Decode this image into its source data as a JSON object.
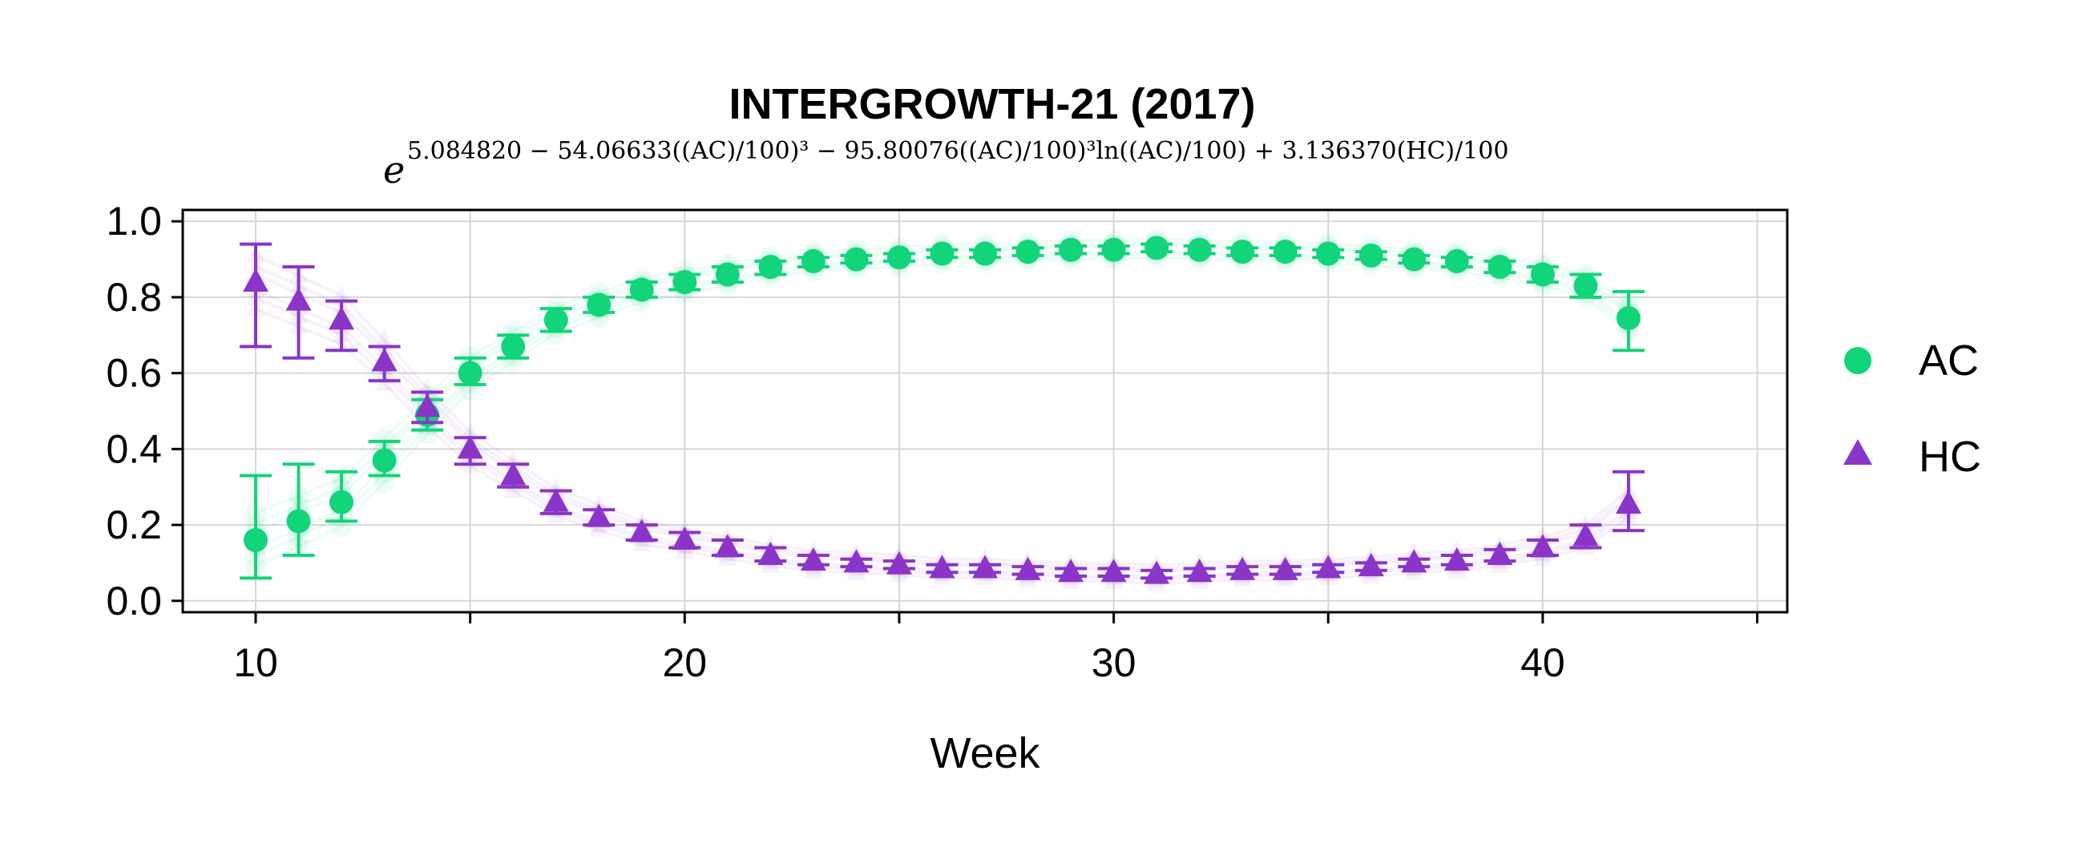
{
  "chart_data": {
    "type": "scatter",
    "title": "INTERGROWTH-21 (2017)",
    "subtitle_base": "e",
    "subtitle_exponent": "5.084820 − 54.06633((AC)/100)³ − 95.80076((AC)/100)³ln((AC)/100) + 3.136370(HC)/100",
    "xlabel": "Week",
    "ylabel": "",
    "xlim": [
      8.3,
      45.7
    ],
    "ylim": [
      -0.03,
      1.03
    ],
    "xticks": [
      10,
      20,
      30,
      40
    ],
    "xticks_minor": [
      15,
      25,
      35,
      45
    ],
    "yticks": [
      0.0,
      0.2,
      0.4,
      0.6,
      0.8,
      1.0
    ],
    "ytick_labels": [
      "0.0",
      "0.2",
      "0.4",
      "0.6",
      "0.8",
      "1.0"
    ],
    "grid": true,
    "legend_position": "right",
    "series": [
      {
        "name": "AC",
        "marker": "circle",
        "color": "#12d47a",
        "x": [
          10,
          11,
          12,
          13,
          14,
          15,
          16,
          17,
          18,
          19,
          20,
          21,
          22,
          23,
          24,
          25,
          26,
          27,
          28,
          29,
          30,
          31,
          32,
          33,
          34,
          35,
          36,
          37,
          38,
          39,
          40,
          41,
          42
        ],
        "y": [
          0.16,
          0.21,
          0.26,
          0.37,
          0.49,
          0.6,
          0.67,
          0.74,
          0.78,
          0.82,
          0.84,
          0.86,
          0.88,
          0.895,
          0.9,
          0.905,
          0.915,
          0.915,
          0.92,
          0.925,
          0.925,
          0.93,
          0.925,
          0.92,
          0.92,
          0.915,
          0.91,
          0.9,
          0.895,
          0.88,
          0.86,
          0.83,
          0.745
        ],
        "err_low": [
          0.06,
          0.12,
          0.21,
          0.33,
          0.45,
          0.57,
          0.64,
          0.71,
          0.76,
          0.8,
          0.82,
          0.84,
          0.86,
          0.88,
          0.89,
          0.895,
          0.905,
          0.905,
          0.91,
          0.915,
          0.915,
          0.92,
          0.915,
          0.91,
          0.91,
          0.905,
          0.9,
          0.89,
          0.88,
          0.865,
          0.84,
          0.8,
          0.66
        ],
        "err_high": [
          0.33,
          0.36,
          0.34,
          0.42,
          0.53,
          0.64,
          0.7,
          0.77,
          0.8,
          0.84,
          0.86,
          0.88,
          0.895,
          0.905,
          0.91,
          0.915,
          0.925,
          0.925,
          0.93,
          0.935,
          0.935,
          0.94,
          0.935,
          0.93,
          0.93,
          0.925,
          0.92,
          0.91,
          0.905,
          0.895,
          0.88,
          0.86,
          0.815
        ]
      },
      {
        "name": "HC",
        "marker": "triangle",
        "color": "#8a35c8",
        "x": [
          10,
          11,
          12,
          13,
          14,
          15,
          16,
          17,
          18,
          19,
          20,
          21,
          22,
          23,
          24,
          25,
          26,
          27,
          28,
          29,
          30,
          31,
          32,
          33,
          34,
          35,
          36,
          37,
          38,
          39,
          40,
          41,
          42
        ],
        "y": [
          0.84,
          0.79,
          0.74,
          0.63,
          0.51,
          0.4,
          0.33,
          0.26,
          0.22,
          0.18,
          0.16,
          0.14,
          0.12,
          0.105,
          0.1,
          0.095,
          0.085,
          0.085,
          0.08,
          0.075,
          0.075,
          0.07,
          0.075,
          0.08,
          0.08,
          0.085,
          0.09,
          0.1,
          0.105,
          0.12,
          0.14,
          0.17,
          0.255
        ],
        "err_low": [
          0.67,
          0.64,
          0.66,
          0.58,
          0.47,
          0.36,
          0.3,
          0.23,
          0.2,
          0.16,
          0.14,
          0.12,
          0.105,
          0.095,
          0.09,
          0.085,
          0.075,
          0.075,
          0.07,
          0.065,
          0.065,
          0.06,
          0.065,
          0.07,
          0.07,
          0.075,
          0.08,
          0.09,
          0.095,
          0.105,
          0.12,
          0.14,
          0.185
        ],
        "err_high": [
          0.94,
          0.88,
          0.79,
          0.67,
          0.55,
          0.43,
          0.36,
          0.29,
          0.24,
          0.2,
          0.18,
          0.16,
          0.14,
          0.12,
          0.11,
          0.105,
          0.095,
          0.095,
          0.09,
          0.085,
          0.085,
          0.08,
          0.085,
          0.09,
          0.09,
          0.095,
          0.1,
          0.11,
          0.12,
          0.135,
          0.16,
          0.2,
          0.34
        ]
      }
    ]
  }
}
